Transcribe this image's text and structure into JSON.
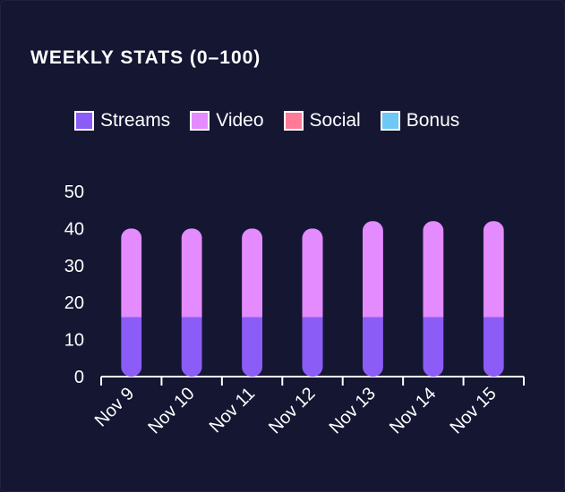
{
  "chart_data": {
    "type": "bar",
    "stacked": true,
    "title": "WEEKLY STATS (0–100)",
    "categories": [
      "Nov 9",
      "Nov 10",
      "Nov 11",
      "Nov 12",
      "Nov 13",
      "Nov 14",
      "Nov 15"
    ],
    "series": [
      {
        "name": "Streams",
        "color": "#8b5cf6",
        "values": [
          16,
          16,
          16,
          16,
          16,
          16,
          16
        ]
      },
      {
        "name": "Video",
        "color": "#e38bff",
        "values": [
          24,
          24,
          24,
          24,
          26,
          26,
          26
        ]
      },
      {
        "name": "Social",
        "color": "#ff7a96",
        "values": [
          0,
          0,
          0,
          0,
          0,
          0,
          0
        ]
      },
      {
        "name": "Bonus",
        "color": "#6ec8f5",
        "values": [
          0,
          0,
          0,
          0,
          0,
          0,
          0
        ]
      }
    ],
    "ylim": [
      0,
      50
    ],
    "yticks": [
      0,
      10,
      20,
      30,
      40,
      50
    ],
    "legend_position": "top-left",
    "grid": false
  }
}
